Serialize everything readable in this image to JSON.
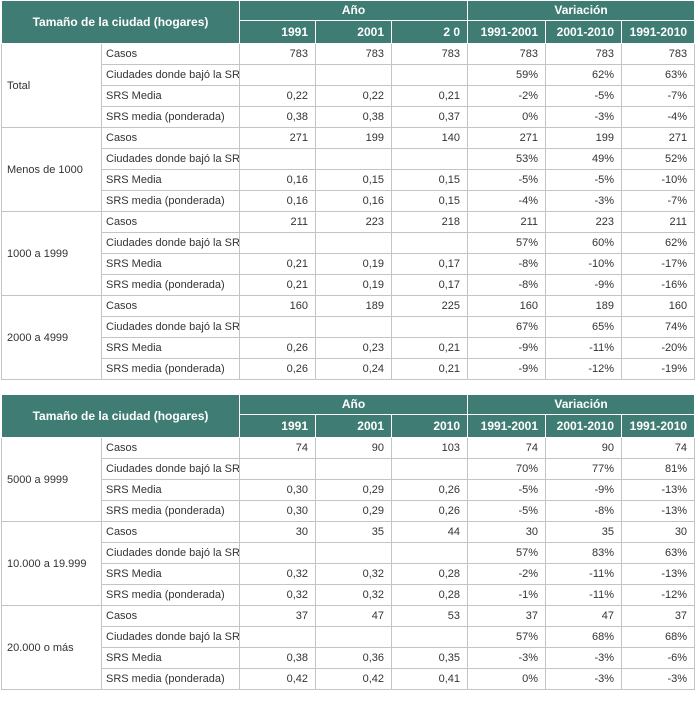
{
  "tables": [
    {
      "header": {
        "label": "Tamaño de la ciudad (hogares)",
        "anio": "Año",
        "variacion": "Variación",
        "cols": [
          "1991",
          "2001",
          "2 0",
          "1991-2001",
          "2001-2010",
          "1991-2010"
        ]
      },
      "groups": [
        {
          "name": "Total",
          "rows": [
            {
              "label": "Casos",
              "vals": [
                "783",
                "783",
                "783",
                "783",
                "783",
                "783"
              ]
            },
            {
              "label": "Ciudades donde bajó la SRS",
              "vals": [
                "",
                "",
                "",
                "59%",
                "62%",
                "63%"
              ]
            },
            {
              "label": "SRS Media",
              "vals": [
                "0,22",
                "0,22",
                "0,21",
                "-2%",
                "-5%",
                "-7%"
              ]
            },
            {
              "label": "SRS media (ponderada)",
              "vals": [
                "0,38",
                "0,38",
                "0,37",
                "0%",
                "-3%",
                "-4%"
              ]
            }
          ]
        },
        {
          "name": "Menos de 1000",
          "rows": [
            {
              "label": "Casos",
              "vals": [
                "271",
                "199",
                "140",
                "271",
                "199",
                "271"
              ]
            },
            {
              "label": "Ciudades donde bajó la SRS",
              "vals": [
                "",
                "",
                "",
                "53%",
                "49%",
                "52%"
              ]
            },
            {
              "label": "SRS Media",
              "vals": [
                "0,16",
                "0,15",
                "0,15",
                "-5%",
                "-5%",
                "-10%"
              ]
            },
            {
              "label": "SRS media (ponderada)",
              "vals": [
                "0,16",
                "0,16",
                "0,15",
                "-4%",
                "-3%",
                "-7%"
              ]
            }
          ]
        },
        {
          "name": "1000 a 1999",
          "rows": [
            {
              "label": "Casos",
              "vals": [
                "211",
                "223",
                "218",
                "211",
                "223",
                "211"
              ]
            },
            {
              "label": "Ciudades donde bajó la SRS",
              "vals": [
                "",
                "",
                "",
                "57%",
                "60%",
                "62%"
              ]
            },
            {
              "label": "SRS Media",
              "vals": [
                "0,21",
                "0,19",
                "0,17",
                "-8%",
                "-10%",
                "-17%"
              ]
            },
            {
              "label": "SRS media (ponderada)",
              "vals": [
                "0,21",
                "0,19",
                "0,17",
                "-8%",
                "-9%",
                "-16%"
              ]
            }
          ]
        },
        {
          "name": "2000 a 4999",
          "rows": [
            {
              "label": "Casos",
              "vals": [
                "160",
                "189",
                "225",
                "160",
                "189",
                "160"
              ]
            },
            {
              "label": "Ciudades donde bajó la SRS",
              "vals": [
                "",
                "",
                "",
                "67%",
                "65%",
                "74%"
              ]
            },
            {
              "label": "SRS Media",
              "vals": [
                "0,26",
                "0,23",
                "0,21",
                "-9%",
                "-11%",
                "-20%"
              ]
            },
            {
              "label": "SRS media (ponderada)",
              "vals": [
                "0,26",
                "0,24",
                "0,21",
                "-9%",
                "-12%",
                "-19%"
              ]
            }
          ]
        }
      ]
    },
    {
      "header": {
        "label": "Tamaño de la ciudad (hogares)",
        "anio": "Año",
        "variacion": "Variación",
        "cols": [
          "1991",
          "2001",
          "2010",
          "1991-2001",
          "2001-2010",
          "1991-2010"
        ]
      },
      "groups": [
        {
          "name": "5000 a 9999",
          "rows": [
            {
              "label": "Casos",
              "vals": [
                "74",
                "90",
                "103",
                "74",
                "90",
                "74"
              ]
            },
            {
              "label": "Ciudades donde bajó la SRS",
              "vals": [
                "",
                "",
                "",
                "70%",
                "77%",
                "81%"
              ]
            },
            {
              "label": "SRS Media",
              "vals": [
                "0,30",
                "0,29",
                "0,26",
                "-5%",
                "-9%",
                "-13%"
              ]
            },
            {
              "label": "SRS media (ponderada)",
              "vals": [
                "0,30",
                "0,29",
                "0,26",
                "-5%",
                "-8%",
                "-13%"
              ]
            }
          ]
        },
        {
          "name": "10.000 a 19.999",
          "rows": [
            {
              "label": "Casos",
              "vals": [
                "30",
                "35",
                "44",
                "30",
                "35",
                "30"
              ]
            },
            {
              "label": "Ciudades donde bajó la SRS",
              "vals": [
                "",
                "",
                "",
                "57%",
                "83%",
                "63%"
              ]
            },
            {
              "label": "SRS Media",
              "vals": [
                "0,32",
                "0,32",
                "0,28",
                "-2%",
                "-11%",
                "-13%"
              ]
            },
            {
              "label": "SRS media (ponderada)",
              "vals": [
                "0,32",
                "0,32",
                "0,28",
                "-1%",
                "-11%",
                "-12%"
              ]
            }
          ]
        },
        {
          "name": "20.000 o más",
          "rows": [
            {
              "label": "Casos",
              "vals": [
                "37",
                "47",
                "53",
                "37",
                "47",
                "37"
              ]
            },
            {
              "label": "Ciudades donde bajó la SRS",
              "vals": [
                "",
                "",
                "",
                "57%",
                "68%",
                "68%"
              ]
            },
            {
              "label": "SRS Media",
              "vals": [
                "0,38",
                "0,36",
                "0,35",
                "-3%",
                "-3%",
                "-6%"
              ]
            },
            {
              "label": "SRS media (ponderada)",
              "vals": [
                "0,42",
                "0,42",
                "0,41",
                "0%",
                "-3%",
                "-3%"
              ]
            }
          ]
        }
      ]
    }
  ]
}
